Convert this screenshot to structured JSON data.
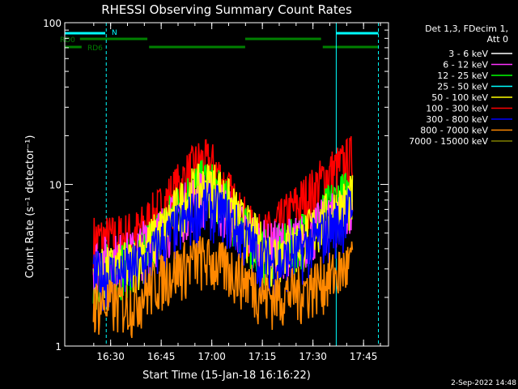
{
  "chart_data": {
    "type": "line",
    "title": "RHESSI Observing Summary Count Rates",
    "xlabel": "Start Time (15-Jan-18 16:16:22)",
    "ylabel": "Count Rate (s⁻¹ detector⁻¹)",
    "yscale": "log",
    "ylim": [
      1,
      100
    ],
    "xlim_minutes": [
      0,
      96
    ],
    "x_ticks": [
      {
        "label": "16:30",
        "minute": 13.6
      },
      {
        "label": "16:45",
        "minute": 28.6
      },
      {
        "label": "17:00",
        "minute": 43.6
      },
      {
        "label": "17:15",
        "minute": 58.6
      },
      {
        "label": "17:30",
        "minute": 73.6
      },
      {
        "label": "17:45",
        "minute": 88.6
      }
    ],
    "y_ticks": [
      {
        "label": "1",
        "value": 1
      },
      {
        "label": "10",
        "value": 10
      },
      {
        "label": "100",
        "value": 100
      }
    ],
    "legend_header": [
      "Det 1,3, FDecim 1,",
      "Att 0"
    ],
    "legend": [
      {
        "name": "3 - 6 keV",
        "color": "#ffffff"
      },
      {
        "name": "6 - 12 keV",
        "color": "#ff33ff"
      },
      {
        "name": "12 - 25 keV",
        "color": "#00ff00"
      },
      {
        "name": "25 - 50 keV",
        "color": "#00ffff"
      },
      {
        "name": "50 - 100 keV",
        "color": "#ffff00"
      },
      {
        "name": "100 - 300 keV",
        "color": "#ff0000"
      },
      {
        "name": "300 - 800 keV",
        "color": "#0000ff"
      },
      {
        "name": "800 - 7000 keV",
        "color": "#ff8800"
      },
      {
        "name": "7000 - 15000 keV",
        "color": "#808000"
      }
    ],
    "flags": [
      {
        "label": "N",
        "color": "#00ffff",
        "segments": [
          [
            0,
            12
          ],
          [
            80.5,
            93
          ]
        ]
      },
      {
        "label": "RD0",
        "color": "#008000",
        "segments": [
          [
            4.5,
            24.5
          ],
          [
            53.5,
            76
          ]
        ]
      },
      {
        "label": "RD6",
        "color": "#008000",
        "segments": [
          [
            0,
            5
          ],
          [
            25,
            53.5
          ],
          [
            76.5,
            93
          ]
        ]
      }
    ],
    "vertical_markers": [
      {
        "minute": 0,
        "style": "solid"
      },
      {
        "minute": 12.3,
        "style": "dashed"
      },
      {
        "minute": 80.5,
        "style": "solid"
      },
      {
        "minute": 93,
        "style": "dashed"
      }
    ],
    "data_window_minutes": [
      8.5,
      85.5
    ],
    "series": [
      {
        "name": "100 - 300 keV",
        "color": "#ff0000",
        "x": [
          8.5,
          15,
          22,
          28,
          32,
          36,
          40,
          44,
          48,
          52,
          57,
          62,
          66,
          70,
          74,
          78,
          82,
          85.5
        ],
        "y": [
          5.0,
          5.0,
          5.5,
          7.5,
          9.5,
          12,
          15,
          14,
          10,
          7,
          5,
          5.5,
          7,
          8.5,
          10,
          12.5,
          14,
          16
        ]
      },
      {
        "name": "12 - 25 keV",
        "color": "#00ff00",
        "x": [
          8.5,
          20,
          28,
          34,
          40,
          44,
          50,
          58,
          66,
          74,
          80,
          85.5
        ],
        "y": [
          3.2,
          3.6,
          5.5,
          8,
          11,
          10.5,
          7,
          4,
          4.5,
          6,
          8.5,
          10
        ]
      },
      {
        "name": "6 - 12 keV",
        "color": "#ff33ff",
        "x": [
          8.5,
          20,
          30,
          40,
          44,
          52,
          60,
          70,
          80,
          85.5
        ],
        "y": [
          3.6,
          4.0,
          6,
          9.5,
          9,
          6,
          4.5,
          5,
          7,
          8
        ]
      },
      {
        "name": "50 - 100 keV",
        "color": "#ffff00",
        "x": [
          8.5,
          20,
          30,
          38,
          44,
          52,
          60,
          70,
          80,
          85.5
        ],
        "y": [
          3.0,
          3.5,
          6,
          10,
          11,
          6.5,
          4,
          4.8,
          7.5,
          9
        ]
      },
      {
        "name": "300 - 800 keV",
        "color": "#0000ff",
        "x": [
          8.5,
          16,
          24,
          30,
          36,
          42,
          46,
          52,
          58,
          64,
          70,
          76,
          82,
          85.5
        ],
        "y": [
          3.0,
          3.0,
          3.6,
          5,
          6.5,
          8,
          7.5,
          5.5,
          3.8,
          3.5,
          4.2,
          5.2,
          6.5,
          8
        ]
      },
      {
        "name": "800 - 7000 keV",
        "color": "#ff8800",
        "x": [
          8.5,
          20,
          30,
          40,
          50,
          60,
          70,
          80,
          85.5
        ],
        "y": [
          2.0,
          2.0,
          3.0,
          3.8,
          3.2,
          2.2,
          2.4,
          3.0,
          3.6
        ]
      }
    ]
  },
  "footer": {
    "date_stamp": "2-Sep-2022 14:48"
  }
}
